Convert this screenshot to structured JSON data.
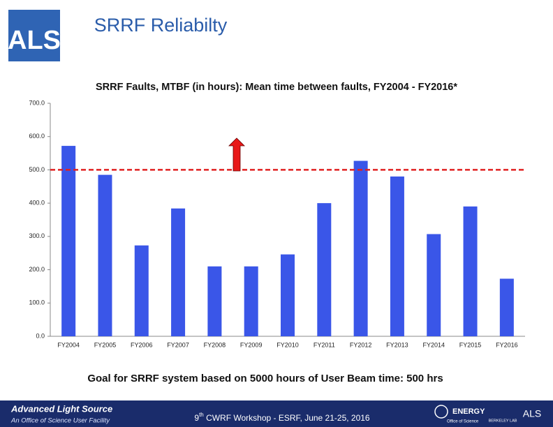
{
  "header": {
    "logo": "ALS",
    "title": "SRRF Reliabilty"
  },
  "chart_data": {
    "type": "bar",
    "title": "SRRF Faults, MTBF (in hours): Mean time between faults, FY2004 - FY2016*",
    "categories": [
      "FY2004",
      "FY2005",
      "FY2006",
      "FY2007",
      "FY2008",
      "FY2009",
      "FY2010",
      "FY2011",
      "FY2012",
      "FY2013",
      "FY2014",
      "FY2015",
      "FY2016"
    ],
    "values": [
      572,
      485,
      273,
      384,
      210,
      210,
      246,
      400,
      527,
      480,
      307,
      390,
      173
    ],
    "color": "#3a56e8",
    "ylim": [
      0,
      700
    ],
    "yticks": [
      {
        "value": 0,
        "label": "0.0"
      },
      {
        "value": 100,
        "label": "100.0"
      },
      {
        "value": 200,
        "label": "200.0"
      },
      {
        "value": 300,
        "label": "300.0"
      },
      {
        "value": 400,
        "label": "400.0"
      },
      {
        "value": 500,
        "label": "500.0"
      },
      {
        "value": 600,
        "label": "600.0"
      },
      {
        "value": 700,
        "label": "700.0"
      }
    ],
    "goal": 500,
    "goal_color": "#e02020"
  },
  "caption": "Goal for SRRF system based on 5000 hours of User Beam time: 500 hrs",
  "footer": {
    "org": "Advanced Light Source",
    "org_sub": "An Office of Science User Facility",
    "event_num": "9",
    "event_sup": "th",
    "event": " CWRF Workshop - ESRF, June 21-25, 2016",
    "doe": "ENERGY",
    "doe_sub": "Office of Science",
    "lab": "BERKELEY LAB",
    "als": "ALS"
  }
}
